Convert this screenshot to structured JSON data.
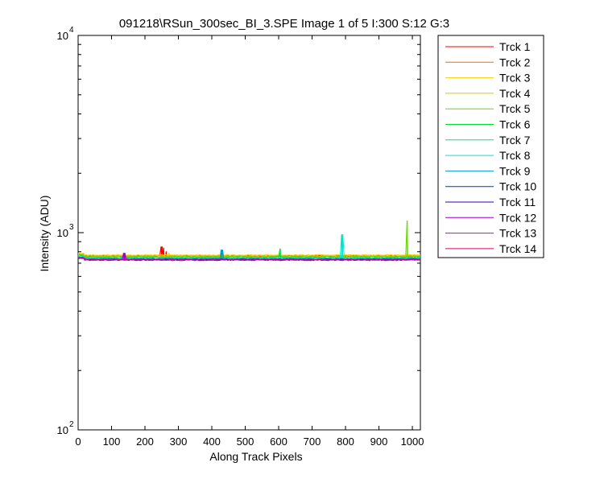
{
  "chart_data": {
    "type": "line",
    "title": "091218\\RSun_300sec_BI_3.SPE  Image 1 of 5  I:300  S:12  G:3",
    "xlabel": "Along Track Pixels",
    "ylabel": "Intensity (ADU)",
    "xlim": [
      0,
      1024
    ],
    "ylim": [
      100,
      10000
    ],
    "yscale": "log",
    "x_ticks": [
      0,
      100,
      200,
      300,
      400,
      500,
      600,
      700,
      800,
      900,
      1000
    ],
    "y_ticks": [
      {
        "value": 100,
        "base": "10",
        "exp": "2"
      },
      {
        "value": 1000,
        "base": "10",
        "exp": "3"
      },
      {
        "value": 10000,
        "base": "10",
        "exp": "4"
      }
    ],
    "grid": false,
    "legend_position": "outside-right",
    "series": [
      {
        "name": "Trck 1",
        "color": "#ff0000",
        "baseline": 760,
        "spikes": [
          [
            250,
            850
          ],
          [
            256,
            840
          ],
          [
            263,
            800
          ]
        ]
      },
      {
        "name": "Trck 2",
        "color": "#ff6600",
        "baseline": 765,
        "spikes": []
      },
      {
        "name": "Trck 3",
        "color": "#ffcc00",
        "baseline": 770,
        "spikes": [
          [
            272,
            790
          ]
        ]
      },
      {
        "name": "Trck 4",
        "color": "#cccc00",
        "baseline": 760,
        "spikes": []
      },
      {
        "name": "Trck 5",
        "color": "#66dd00",
        "baseline": 755,
        "spikes": [
          [
            985,
            1150
          ]
        ]
      },
      {
        "name": "Trck 6",
        "color": "#00dd33",
        "baseline": 750,
        "spikes": [
          [
            605,
            830
          ]
        ]
      },
      {
        "name": "Trck 7",
        "color": "#00dd99",
        "baseline": 745,
        "spikes": []
      },
      {
        "name": "Trck 8",
        "color": "#00e6cc",
        "baseline": 740,
        "spikes": [
          [
            790,
            980
          ]
        ]
      },
      {
        "name": "Trck 9",
        "color": "#0099cc",
        "baseline": 735,
        "spikes": [
          [
            430,
            820
          ]
        ]
      },
      {
        "name": "Trck 10",
        "color": "#0033cc",
        "baseline": 730,
        "spikes": []
      },
      {
        "name": "Trck 11",
        "color": "#3300aa",
        "baseline": 728,
        "spikes": []
      },
      {
        "name": "Trck 12",
        "color": "#9900cc",
        "baseline": 725,
        "spikes": [
          [
            138,
            790
          ]
        ]
      },
      {
        "name": "Trck 13",
        "color": "#cc00cc",
        "baseline": 730,
        "spikes": []
      },
      {
        "name": "Trck 14",
        "color": "#dd0066",
        "baseline": 735,
        "spikes": []
      }
    ]
  }
}
